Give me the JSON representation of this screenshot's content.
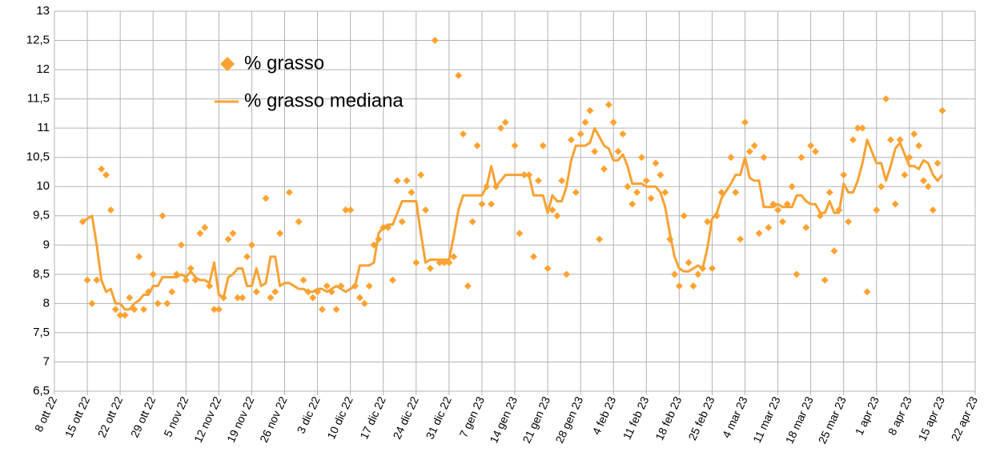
{
  "chart_data": {
    "type": "line",
    "xlim": [
      "2022-10-08",
      "2023-04-22"
    ],
    "xticks": [
      {
        "value": "2022-10-08",
        "label": "8 ott 22"
      },
      {
        "value": "2022-10-15",
        "label": "15 ott 22"
      },
      {
        "value": "2022-10-22",
        "label": "22 ott 22"
      },
      {
        "value": "2022-10-29",
        "label": "29 ott 22"
      },
      {
        "value": "2022-11-05",
        "label": "5 nov 22"
      },
      {
        "value": "2022-11-12",
        "label": "12 nov 22"
      },
      {
        "value": "2022-11-19",
        "label": "19 nov 22"
      },
      {
        "value": "2022-11-26",
        "label": "26 nov 22"
      },
      {
        "value": "2022-12-03",
        "label": "3 dic 22"
      },
      {
        "value": "2022-12-10",
        "label": "10 dic 22"
      },
      {
        "value": "2022-12-17",
        "label": "17 dic 22"
      },
      {
        "value": "2022-12-24",
        "label": "24 dic 22"
      },
      {
        "value": "2022-12-31",
        "label": "31 dic 22"
      },
      {
        "value": "2023-01-07",
        "label": "7 gen 23"
      },
      {
        "value": "2023-01-14",
        "label": "14 gen 23"
      },
      {
        "value": "2023-01-21",
        "label": "21 gen 23"
      },
      {
        "value": "2023-01-28",
        "label": "28 gen 23"
      },
      {
        "value": "2023-02-04",
        "label": "4 feb 23"
      },
      {
        "value": "2023-02-11",
        "label": "11 feb 23"
      },
      {
        "value": "2023-02-18",
        "label": "18 feb 23"
      },
      {
        "value": "2023-02-25",
        "label": "25 feb 23"
      },
      {
        "value": "2023-03-04",
        "label": "4 mar 23"
      },
      {
        "value": "2023-03-11",
        "label": "11 mar 23"
      },
      {
        "value": "2023-03-18",
        "label": "18 mar 23"
      },
      {
        "value": "2023-03-25",
        "label": "25 mar 23"
      },
      {
        "value": "2023-04-01",
        "label": "1 apr 23"
      },
      {
        "value": "2023-04-08",
        "label": "8 apr 23"
      },
      {
        "value": "2023-04-15",
        "label": "15 apr 23"
      },
      {
        "value": "2023-04-22",
        "label": "22 apr 23"
      }
    ],
    "ylim": [
      6.5,
      13
    ],
    "yticks": [
      {
        "value": 6.5,
        "label": "6,5"
      },
      7,
      {
        "value": 7.5,
        "label": "7,5"
      },
      8,
      {
        "value": 8.5,
        "label": "8,5"
      },
      9,
      {
        "value": 9.5,
        "label": "9,5"
      },
      10,
      {
        "value": 10.5,
        "label": "10,5"
      },
      11,
      {
        "value": 11.5,
        "label": "11,5"
      },
      12,
      {
        "value": 12.5,
        "label": "12,5"
      },
      13
    ],
    "grid": true,
    "legend": "top-left",
    "x": [
      "2022-10-14",
      "2022-10-15",
      "2022-10-16",
      "2022-10-17",
      "2022-10-18",
      "2022-10-19",
      "2022-10-20",
      "2022-10-21",
      "2022-10-22",
      "2022-10-23",
      "2022-10-24",
      "2022-10-25",
      "2022-10-26",
      "2022-10-27",
      "2022-10-28",
      "2022-10-29",
      "2022-10-30",
      "2022-10-31",
      "2022-11-01",
      "2022-11-02",
      "2022-11-03",
      "2022-11-04",
      "2022-11-05",
      "2022-11-06",
      "2022-11-07",
      "2022-11-08",
      "2022-11-09",
      "2022-11-10",
      "2022-11-11",
      "2022-11-12",
      "2022-11-13",
      "2022-11-14",
      "2022-11-15",
      "2022-11-16",
      "2022-11-17",
      "2022-11-18",
      "2022-11-19",
      "2022-11-20",
      "2022-11-21",
      "2022-11-22",
      "2022-11-23",
      "2022-11-24",
      "2022-11-25",
      "2022-11-26",
      "2022-11-27",
      "2022-11-29",
      "2022-11-30",
      "2022-12-01",
      "2022-12-02",
      "2022-12-03",
      "2022-12-04",
      "2022-12-05",
      "2022-12-06",
      "2022-12-07",
      "2022-12-08",
      "2022-12-09",
      "2022-12-10",
      "2022-12-11",
      "2022-12-12",
      "2022-12-13",
      "2022-12-14",
      "2022-12-15",
      "2022-12-16",
      "2022-12-17",
      "2022-12-18",
      "2022-12-19",
      "2022-12-20",
      "2022-12-21",
      "2022-12-22",
      "2022-12-23",
      "2022-12-24",
      "2022-12-25",
      "2022-12-26",
      "2022-12-27",
      "2022-12-28",
      "2022-12-29",
      "2022-12-30",
      "2022-12-31",
      "2023-01-01",
      "2023-01-02",
      "2023-01-03",
      "2023-01-04",
      "2023-01-05",
      "2023-01-06",
      "2023-01-07",
      "2023-01-08",
      "2023-01-09",
      "2023-01-10",
      "2023-01-11",
      "2023-01-12",
      "2023-01-14",
      "2023-01-15",
      "2023-01-16",
      "2023-01-17",
      "2023-01-18",
      "2023-01-19",
      "2023-01-20",
      "2023-01-21",
      "2023-01-22",
      "2023-01-23",
      "2023-01-24",
      "2023-01-25",
      "2023-01-26",
      "2023-01-27",
      "2023-01-28",
      "2023-01-29",
      "2023-01-30",
      "2023-01-31",
      "2023-02-01",
      "2023-02-02",
      "2023-02-03",
      "2023-02-04",
      "2023-02-05",
      "2023-02-06",
      "2023-02-07",
      "2023-02-08",
      "2023-02-09",
      "2023-02-10",
      "2023-02-11",
      "2023-02-12",
      "2023-02-13",
      "2023-02-14",
      "2023-02-15",
      "2023-02-16",
      "2023-02-17",
      "2023-02-18",
      "2023-02-19",
      "2023-02-20",
      "2023-02-21",
      "2023-02-22",
      "2023-02-23",
      "2023-02-24",
      "2023-02-25",
      "2023-02-26",
      "2023-02-27",
      "2023-03-01",
      "2023-03-02",
      "2023-03-03",
      "2023-03-04",
      "2023-03-05",
      "2023-03-06",
      "2023-03-07",
      "2023-03-08",
      "2023-03-09",
      "2023-03-10",
      "2023-03-11",
      "2023-03-12",
      "2023-03-13",
      "2023-03-14",
      "2023-03-15",
      "2023-03-16",
      "2023-03-17",
      "2023-03-18",
      "2023-03-19",
      "2023-03-20",
      "2023-03-21",
      "2023-03-22",
      "2023-03-23",
      "2023-03-24",
      "2023-03-25",
      "2023-03-26",
      "2023-03-27",
      "2023-03-28",
      "2023-03-29",
      "2023-03-30",
      "2023-04-01",
      "2023-04-02",
      "2023-04-03",
      "2023-04-04",
      "2023-04-05",
      "2023-04-06",
      "2023-04-07",
      "2023-04-08",
      "2023-04-09",
      "2023-04-10",
      "2023-04-11",
      "2023-04-12",
      "2023-04-13",
      "2023-04-14",
      "2023-04-15"
    ],
    "series": [
      {
        "name": "% grasso",
        "type": "scatter",
        "marker": "diamond",
        "color": "#ffa231",
        "values": [
          9.4,
          8.4,
          8.0,
          8.4,
          10.3,
          10.2,
          9.6,
          7.9,
          7.8,
          7.8,
          8.1,
          7.9,
          8.8,
          7.9,
          8.2,
          8.5,
          8.0,
          9.5,
          8.0,
          8.2,
          8.5,
          9.0,
          8.4,
          8.6,
          8.4,
          9.2,
          9.3,
          8.3,
          7.9,
          7.9,
          8.1,
          9.1,
          9.2,
          8.1,
          8.1,
          8.8,
          9.0,
          8.2,
          null,
          9.8,
          8.1,
          8.2,
          9.2,
          null,
          9.9,
          9.4,
          8.4,
          8.2,
          8.1,
          8.2,
          7.9,
          8.3,
          8.2,
          7.9,
          8.3,
          9.6,
          9.6,
          8.3,
          8.1,
          8.0,
          8.3,
          9.0,
          9.1,
          9.3,
          9.3,
          8.4,
          10.1,
          9.4,
          10.1,
          9.9,
          8.7,
          10.2,
          9.6,
          8.6,
          12.5,
          8.7,
          8.7,
          8.7,
          8.8,
          11.9,
          10.9,
          8.3,
          9.4,
          10.7,
          9.7,
          10.0,
          9.7,
          10.0,
          11.0,
          11.1,
          10.7,
          9.2,
          10.2,
          10.2,
          8.8,
          10.1,
          10.7,
          8.6,
          9.6,
          9.5,
          10.1,
          8.5,
          10.8,
          9.9,
          10.9,
          11.1,
          11.3,
          10.6,
          9.1,
          10.3,
          11.4,
          11.1,
          10.6,
          10.9,
          10.0,
          9.7,
          9.9,
          10.5,
          10.1,
          9.8,
          10.4,
          10.2,
          9.9,
          9.1,
          8.5,
          8.3,
          9.5,
          8.7,
          8.3,
          8.5,
          8.6,
          9.4,
          8.6,
          9.5,
          9.9,
          10.5,
          9.9,
          9.1,
          11.1,
          10.6,
          10.7,
          9.2,
          10.5,
          9.3,
          9.7,
          9.6,
          9.4,
          9.7,
          10.0,
          8.5,
          10.5,
          9.3,
          10.7,
          10.6,
          9.5,
          8.4,
          9.9,
          8.9,
          9.6,
          10.2,
          9.4,
          10.8,
          11.0,
          11.0,
          8.2,
          9.6,
          10.0,
          11.5,
          10.8,
          9.7,
          10.8,
          10.2,
          10.5,
          10.9,
          10.7,
          10.1,
          10.0,
          9.6,
          10.4,
          11.3
        ]
      },
      {
        "name": "% grasso mediana",
        "type": "line",
        "color": "#f7a233",
        "values": [
          9.4,
          9.45,
          9.5,
          9.0,
          8.4,
          8.2,
          8.25,
          8.0,
          8.0,
          7.9,
          7.9,
          8.0,
          8.05,
          8.15,
          8.15,
          8.3,
          8.3,
          8.45,
          8.45,
          8.45,
          8.45,
          8.5,
          8.45,
          8.55,
          8.45,
          8.4,
          8.4,
          8.35,
          8.7,
          8.15,
          8.1,
          8.45,
          8.5,
          8.6,
          8.6,
          8.3,
          8.3,
          8.6,
          8.3,
          8.35,
          8.8,
          8.8,
          8.3,
          8.35,
          8.35,
          8.25,
          8.25,
          8.2,
          8.2,
          8.25,
          8.25,
          8.2,
          8.25,
          8.3,
          8.25,
          8.2,
          8.25,
          8.3,
          8.65,
          8.65,
          8.65,
          8.7,
          9.2,
          9.3,
          9.35,
          9.35,
          9.55,
          9.75,
          9.75,
          9.75,
          9.75,
          9.2,
          8.7,
          8.75,
          8.75,
          8.75,
          8.75,
          8.75,
          9.15,
          9.6,
          9.85,
          9.85,
          9.85,
          9.85,
          9.85,
          10.0,
          10.35,
          10.0,
          10.1,
          10.2,
          10.2,
          10.2,
          10.2,
          10.2,
          9.85,
          9.85,
          9.85,
          9.55,
          9.85,
          9.75,
          9.75,
          10.0,
          10.45,
          10.7,
          10.7,
          10.7,
          10.75,
          11.0,
          10.85,
          10.7,
          10.65,
          10.45,
          10.45,
          10.55,
          10.35,
          10.05,
          10.05,
          10.05,
          10.0,
          10.0,
          10.0,
          9.9,
          9.65,
          9.2,
          8.8,
          8.6,
          8.55,
          8.55,
          8.6,
          8.65,
          8.6,
          8.95,
          9.45,
          9.55,
          9.8,
          10.05,
          10.2,
          10.2,
          10.5,
          10.15,
          10.1,
          10.1,
          9.65,
          9.65,
          9.65,
          9.7,
          9.65,
          9.65,
          9.65,
          9.85,
          9.85,
          9.75,
          9.7,
          9.7,
          9.55,
          9.55,
          9.75,
          9.55,
          9.55,
          10.05,
          9.9,
          9.9,
          10.1,
          10.4,
          10.8,
          10.4,
          10.4,
          10.1,
          10.35,
          10.65,
          10.75,
          10.55,
          10.35,
          10.35,
          10.3,
          10.45,
          10.4,
          10.2,
          10.1,
          10.2
        ]
      }
    ]
  }
}
